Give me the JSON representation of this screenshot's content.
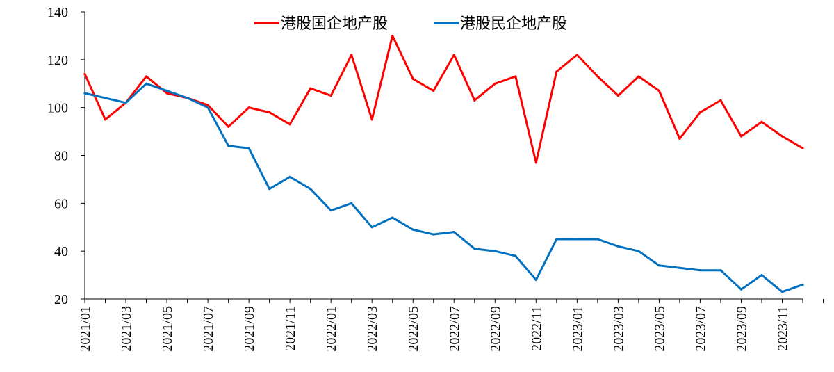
{
  "chart_data": {
    "type": "line",
    "title": "",
    "xlabel": "",
    "ylabel": "",
    "ylim": [
      20,
      140
    ],
    "yticks": [
      20,
      40,
      60,
      80,
      100,
      120,
      140
    ],
    "x_ticks": [
      "2021/01",
      "2021/03",
      "2021/05",
      "2021/07",
      "2021/09",
      "2021/11",
      "2022/01",
      "2022/03",
      "2022/05",
      "2022/07",
      "2022/09",
      "2022/11",
      "2023/01",
      "2023/03",
      "2023/05",
      "2023/07",
      "2023/09",
      "2023/11"
    ],
    "legend_position": "top-center",
    "series": [
      {
        "name": "港股国企地产股",
        "color": "#ff0000",
        "x": [
          "2021/01",
          "2021/02",
          "2021/03",
          "2021/04",
          "2021/05",
          "2021/06",
          "2021/07",
          "2021/08",
          "2021/09",
          "2021/10",
          "2021/11",
          "2021/12",
          "2022/01",
          "2022/02",
          "2022/03",
          "2022/04",
          "2022/05",
          "2022/06",
          "2022/07",
          "2022/08",
          "2022/09",
          "2022/10",
          "2022/11",
          "2022/12",
          "2023/01",
          "2023/02",
          "2023/03",
          "2023/04",
          "2023/05",
          "2023/06",
          "2023/07",
          "2023/08",
          "2023/09",
          "2023/10",
          "2023/11",
          "2023/12"
        ],
        "values": [
          114,
          95,
          102,
          113,
          106,
          104,
          101,
          92,
          100,
          98,
          93,
          108,
          105,
          122,
          95,
          130,
          112,
          107,
          122,
          103,
          110,
          113,
          77,
          115,
          122,
          113,
          105,
          113,
          107,
          87,
          98,
          103,
          88,
          94,
          88,
          83
        ]
      },
      {
        "name": "港股民企地产股",
        "color": "#0070c0",
        "x": [
          "2021/01",
          "2021/02",
          "2021/03",
          "2021/04",
          "2021/05",
          "2021/06",
          "2021/07",
          "2021/08",
          "2021/09",
          "2021/10",
          "2021/11",
          "2021/12",
          "2022/01",
          "2022/02",
          "2022/03",
          "2022/04",
          "2022/05",
          "2022/06",
          "2022/07",
          "2022/08",
          "2022/09",
          "2022/10",
          "2022/11",
          "2022/12",
          "2023/01",
          "2023/02",
          "2023/03",
          "2023/04",
          "2023/05",
          "2023/06",
          "2023/07",
          "2023/08",
          "2023/09",
          "2023/10",
          "2023/11",
          "2023/12"
        ],
        "values": [
          106,
          104,
          102,
          110,
          107,
          104,
          100,
          84,
          83,
          66,
          71,
          66,
          57,
          60,
          50,
          54,
          49,
          47,
          48,
          41,
          40,
          38,
          28,
          45,
          45,
          45,
          42,
          40,
          34,
          33,
          32,
          32,
          24,
          30,
          23,
          26
        ]
      }
    ]
  }
}
